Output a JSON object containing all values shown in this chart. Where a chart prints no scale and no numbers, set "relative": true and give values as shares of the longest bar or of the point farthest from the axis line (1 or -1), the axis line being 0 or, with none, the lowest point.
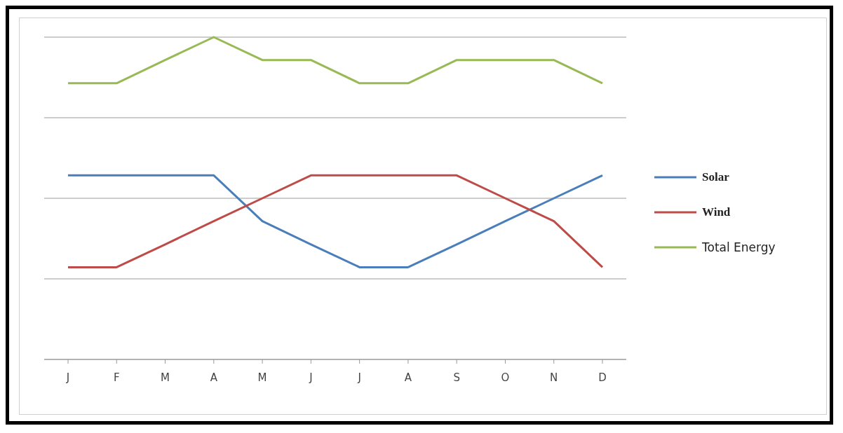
{
  "chart_data": {
    "type": "line",
    "relative": true,
    "categories": [
      "J",
      "F",
      "M",
      "A",
      "M",
      "J",
      "J",
      "A",
      "S",
      "O",
      "N",
      "D"
    ],
    "series": [
      {
        "name": "Solar",
        "color": "#4a7ebb",
        "values": [
          0.571,
          0.571,
          0.571,
          0.571,
          0.429,
          0.357,
          0.286,
          0.286,
          0.357,
          0.429,
          0.5,
          0.571
        ]
      },
      {
        "name": "Wind",
        "color": "#be4b48",
        "values": [
          0.286,
          0.286,
          0.357,
          0.429,
          0.5,
          0.571,
          0.571,
          0.571,
          0.571,
          0.5,
          0.429,
          0.286
        ]
      },
      {
        "name": "Total Energy",
        "color": "#98b954",
        "values": [
          0.857,
          0.857,
          0.929,
          1,
          0.929,
          0.929,
          0.857,
          0.857,
          0.929,
          0.929,
          0.929,
          0.857
        ]
      }
    ],
    "grid": "y",
    "legend": "right",
    "marker": "none",
    "line_style": "solid"
  }
}
